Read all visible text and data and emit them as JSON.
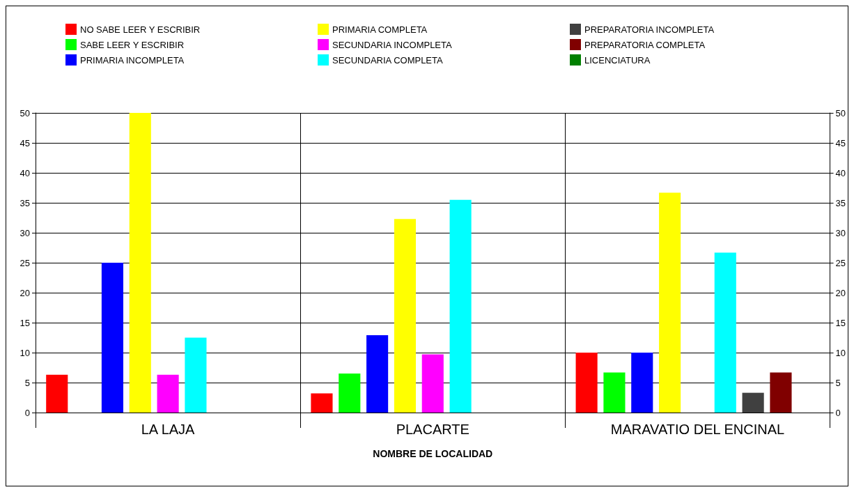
{
  "chart_data": {
    "type": "bar",
    "xlabel": "NOMBRE DE LOCALIDAD",
    "categories": [
      "LA LAJA",
      "PLACARTE",
      "MARAVATIO DEL ENCINAL"
    ],
    "series": [
      {
        "name": "NO SABE LEER Y ESCRIBIR",
        "color": "#ff0000",
        "values": [
          6.3,
          3.2,
          10
        ]
      },
      {
        "name": "SABE LEER Y ESCRIBIR",
        "color": "#00ff00",
        "values": [
          null,
          6.5,
          6.7
        ]
      },
      {
        "name": "PRIMARIA INCOMPLETA",
        "color": "#0000ff",
        "values": [
          25,
          12.9,
          10
        ]
      },
      {
        "name": "PRIMARIA COMPLETA",
        "color": "#ffff00",
        "values": [
          50,
          32.3,
          36.7
        ]
      },
      {
        "name": "SECUNDARIA INCOMPLETA",
        "color": "#ff00ff",
        "values": [
          6.3,
          9.7,
          null
        ]
      },
      {
        "name": "SECUNDARIA COMPLETA",
        "color": "#00ffff",
        "values": [
          12.5,
          35.5,
          26.7
        ]
      },
      {
        "name": "PREPARATORIA INCOMPLETA",
        "color": "#404040",
        "values": [
          null,
          null,
          3.3
        ]
      },
      {
        "name": "PREPARATORIA COMPLETA",
        "color": "#800000",
        "values": [
          null,
          null,
          6.7
        ]
      },
      {
        "name": "LICENCIATURA",
        "color": "#008000",
        "values": [
          null,
          null,
          null
        ]
      }
    ],
    "ylim": [
      0,
      50
    ],
    "yticks": [
      0,
      5,
      10,
      15,
      20,
      25,
      30,
      35,
      40,
      45,
      50
    ],
    "y2lim": [
      0,
      50
    ],
    "y2ticks": [
      0,
      5,
      10,
      15,
      20,
      25,
      30,
      35,
      40,
      45,
      50
    ],
    "grid": true,
    "legend": "top"
  }
}
